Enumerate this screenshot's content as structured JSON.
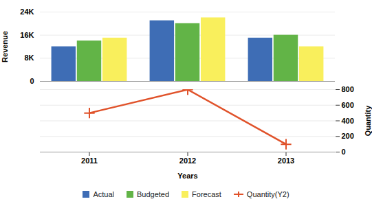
{
  "chart_data": {
    "type": "bar",
    "categories": [
      "2011",
      "2012",
      "2013"
    ],
    "x_label": "Years",
    "y_label": "Revenue",
    "y2_label": "Quantity",
    "ylim": [
      0,
      24000
    ],
    "yticks": [
      0,
      {
        "value": 8000,
        "label": "8K"
      },
      {
        "value": 16000,
        "label": "16K"
      },
      {
        "value": 24000,
        "label": "24K"
      }
    ],
    "y2lim": [
      0,
      800
    ],
    "y2ticks": [
      0,
      200,
      400,
      600,
      800
    ],
    "grid": true,
    "legend": "bottom",
    "series": [
      {
        "name": "Actual",
        "color": "#3e6db5",
        "values": [
          12000,
          21000,
          15000
        ]
      },
      {
        "name": "Budgeted",
        "color": "#62b447",
        "values": [
          14000,
          20000,
          16000
        ]
      },
      {
        "name": "Forecast",
        "color": "#f9ef5c",
        "values": [
          15000,
          22000,
          12000
        ]
      },
      {
        "name": "Quantity(Y2)",
        "type": "line",
        "axis": "y2",
        "marker": "plus",
        "color": "#e0522a",
        "values": [
          500,
          800,
          100
        ]
      }
    ]
  }
}
